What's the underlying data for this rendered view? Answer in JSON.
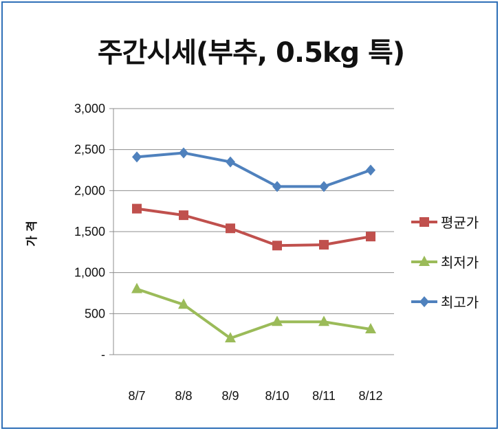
{
  "chart_data": {
    "type": "line",
    "title": "주간시세(부추, 0.5kg 특)",
    "ylabel": "가 격",
    "xlabel": "",
    "categories": [
      "8/7",
      "8/8",
      "8/9",
      "8/10",
      "8/11",
      "8/12"
    ],
    "ylim": [
      0,
      3000
    ],
    "ytick_labels": [
      "-",
      "500",
      "1,000",
      "1,500",
      "2,000",
      "2,500",
      "3,000"
    ],
    "grid": true,
    "legend_position": "right",
    "series": [
      {
        "name": "평균가",
        "color": "#c0504d",
        "marker": "square",
        "values": [
          1780,
          1700,
          1540,
          1330,
          1340,
          1440
        ]
      },
      {
        "name": "최저가",
        "color": "#9bbb59",
        "marker": "triangle",
        "values": [
          800,
          610,
          200,
          400,
          400,
          310
        ]
      },
      {
        "name": "최고가",
        "color": "#4f81bd",
        "marker": "diamond",
        "values": [
          2410,
          2460,
          2350,
          2050,
          2050,
          2250
        ]
      }
    ]
  }
}
